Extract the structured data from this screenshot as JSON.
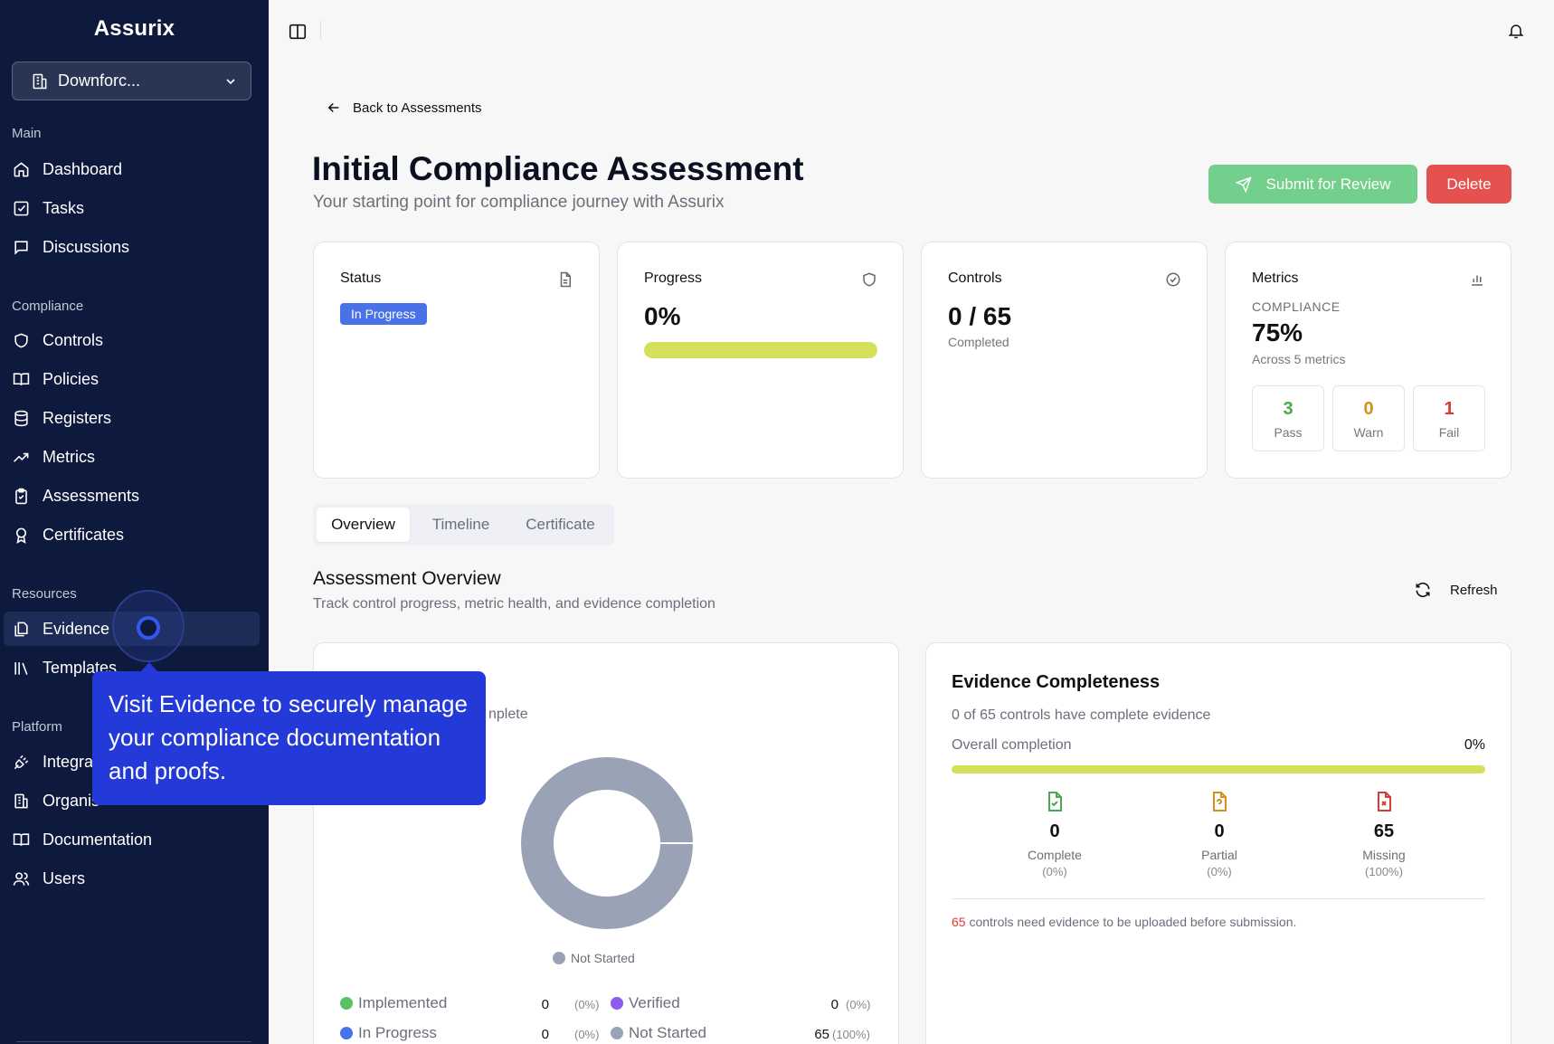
{
  "app": {
    "brand": "Assurix",
    "org_name": "Downforc..."
  },
  "sidebar": {
    "sections": {
      "main": "Main",
      "compliance": "Compliance",
      "resources": "Resources",
      "platform": "Platform"
    },
    "main_items": [
      {
        "label": "Dashboard",
        "icon": "home-icon"
      },
      {
        "label": "Tasks",
        "icon": "check-square-icon"
      },
      {
        "label": "Discussions",
        "icon": "message-icon"
      }
    ],
    "compliance_items": [
      {
        "label": "Controls",
        "icon": "shield-icon"
      },
      {
        "label": "Policies",
        "icon": "book-icon"
      },
      {
        "label": "Registers",
        "icon": "database-icon"
      },
      {
        "label": "Metrics",
        "icon": "trend-icon"
      },
      {
        "label": "Assessments",
        "icon": "clipboard-icon"
      },
      {
        "label": "Certificates",
        "icon": "award-icon"
      }
    ],
    "resources_items": [
      {
        "label": "Evidence",
        "icon": "files-icon"
      },
      {
        "label": "Templates",
        "icon": "library-icon"
      }
    ],
    "platform_items": [
      {
        "label": "Integra",
        "icon": "plug-icon"
      },
      {
        "label": "Organis",
        "icon": "building-icon"
      },
      {
        "label": "Documentation",
        "icon": "book-icon"
      },
      {
        "label": "Users",
        "icon": "users-icon"
      }
    ]
  },
  "tour": {
    "tooltip": "Visit Evidence to securely manage your compliance documentation and proofs."
  },
  "page": {
    "back_label": "Back to Assessments",
    "title": "Initial Compliance Assessment",
    "subtitle": "Your starting point for compliance journey with Assurix",
    "submit_label": "Submit for Review",
    "delete_label": "Delete"
  },
  "cards": {
    "status": {
      "label": "Status",
      "value": "In Progress"
    },
    "progress": {
      "label": "Progress",
      "value": "0%",
      "fraction": 0
    },
    "controls": {
      "label": "Controls",
      "value": "0 / 65",
      "sub": "Completed"
    },
    "metrics": {
      "label": "Metrics",
      "caption": "COMPLIANCE",
      "value": "75%",
      "sub": "Across 5 metrics",
      "pass": {
        "n": "3",
        "label": "Pass"
      },
      "warn": {
        "n": "0",
        "label": "Warn"
      },
      "fail": {
        "n": "1",
        "label": "Fail"
      }
    }
  },
  "tabs": [
    "Overview",
    "Timeline",
    "Certificate"
  ],
  "overview": {
    "title": "Assessment Overview",
    "subtitle": "Track control progress, metric health, and evidence completion",
    "refresh_label": "Refresh"
  },
  "control_panel": {
    "partial_text": "nplete",
    "donut_legend": "Not Started",
    "stats": [
      {
        "label": "Implemented",
        "value": "0",
        "pct": "(0%)",
        "color": "#5bbf63"
      },
      {
        "label": "Verified",
        "value": "0",
        "pct": "(0%)",
        "color": "#8c5cf0"
      },
      {
        "label": "In Progress",
        "value": "0",
        "pct": "(0%)",
        "color": "#4a72e8"
      },
      {
        "label": "Not Started",
        "value": "65",
        "pct": "(100%)",
        "color": "#9aa3b5"
      }
    ]
  },
  "evidence": {
    "title": "Evidence Completeness",
    "subtitle": "0 of 65 controls have complete evidence",
    "overall_label": "Overall completion",
    "overall_pct": "0%",
    "complete": {
      "n": "0",
      "label": "Complete",
      "pct": "(0%)"
    },
    "partial": {
      "n": "0",
      "label": "Partial",
      "pct": "(0%)"
    },
    "missing": {
      "n": "65",
      "label": "Missing",
      "pct": "(100%)"
    },
    "note_count": "65",
    "note_text": " controls need evidence to be uploaded before submission."
  },
  "colors": {
    "sidebar_bg": "#0e1a3d",
    "accent": "#2339d8",
    "submit": "#72cf8c",
    "delete": "#e4514e",
    "progress": "#d4e05a"
  }
}
